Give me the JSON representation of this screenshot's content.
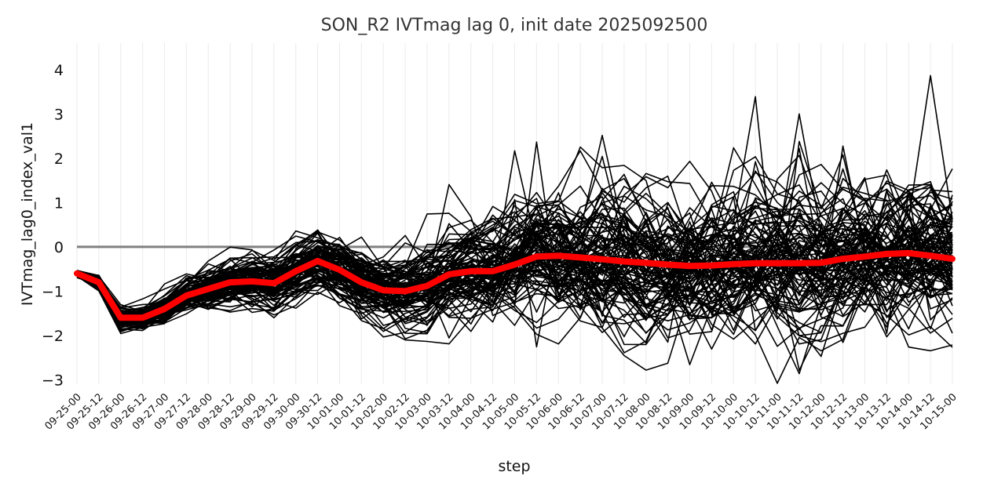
{
  "chart_data": {
    "type": "line",
    "title": "SON_R2 IVTmag lag 0, init date 2025092500",
    "xlabel": "step",
    "ylabel": "IVTmag_lag0_index_val1",
    "ylim": [
      -3.1,
      4.6
    ],
    "yticks": [
      -3,
      -2,
      -1,
      0,
      1,
      2,
      3,
      4
    ],
    "grid": "vertical",
    "reference_line": {
      "y": 0,
      "color": "#808080"
    },
    "categories": [
      "09-25-00",
      "09-25-12",
      "09-26-00",
      "09-26-12",
      "09-27-00",
      "09-27-12",
      "09-28-00",
      "09-28-12",
      "09-29-00",
      "09-29-12",
      "09-30-00",
      "09-30-12",
      "10-01-00",
      "10-01-12",
      "10-02-00",
      "10-02-12",
      "10-03-00",
      "10-03-12",
      "10-04-00",
      "10-04-12",
      "10-05-00",
      "10-05-12",
      "10-06-00",
      "10-06-12",
      "10-07-00",
      "10-07-12",
      "10-08-00",
      "10-08-12",
      "10-09-00",
      "10-09-12",
      "10-10-00",
      "10-10-12",
      "10-11-00",
      "10-11-12",
      "10-12-00",
      "10-12-12",
      "10-13-00",
      "10-13-12",
      "10-14-00",
      "10-14-12",
      "10-15-00"
    ],
    "ensemble": {
      "members": 100,
      "color": "#000000"
    },
    "series": [
      {
        "color": "#ff0000",
        "values": [
          -0.6,
          -0.8,
          -1.6,
          -1.6,
          -1.4,
          -1.1,
          -0.95,
          -0.8,
          -0.78,
          -0.82,
          -0.55,
          -0.32,
          -0.52,
          -0.8,
          -0.98,
          -1.0,
          -0.88,
          -0.62,
          -0.55,
          -0.55,
          -0.4,
          -0.22,
          -0.2,
          -0.24,
          -0.28,
          -0.33,
          -0.36,
          -0.4,
          -0.43,
          -0.42,
          -0.39,
          -0.37,
          -0.37,
          -0.37,
          -0.36,
          -0.27,
          -0.22,
          -0.16,
          -0.14,
          -0.2,
          -0.27
        ]
      }
    ]
  }
}
